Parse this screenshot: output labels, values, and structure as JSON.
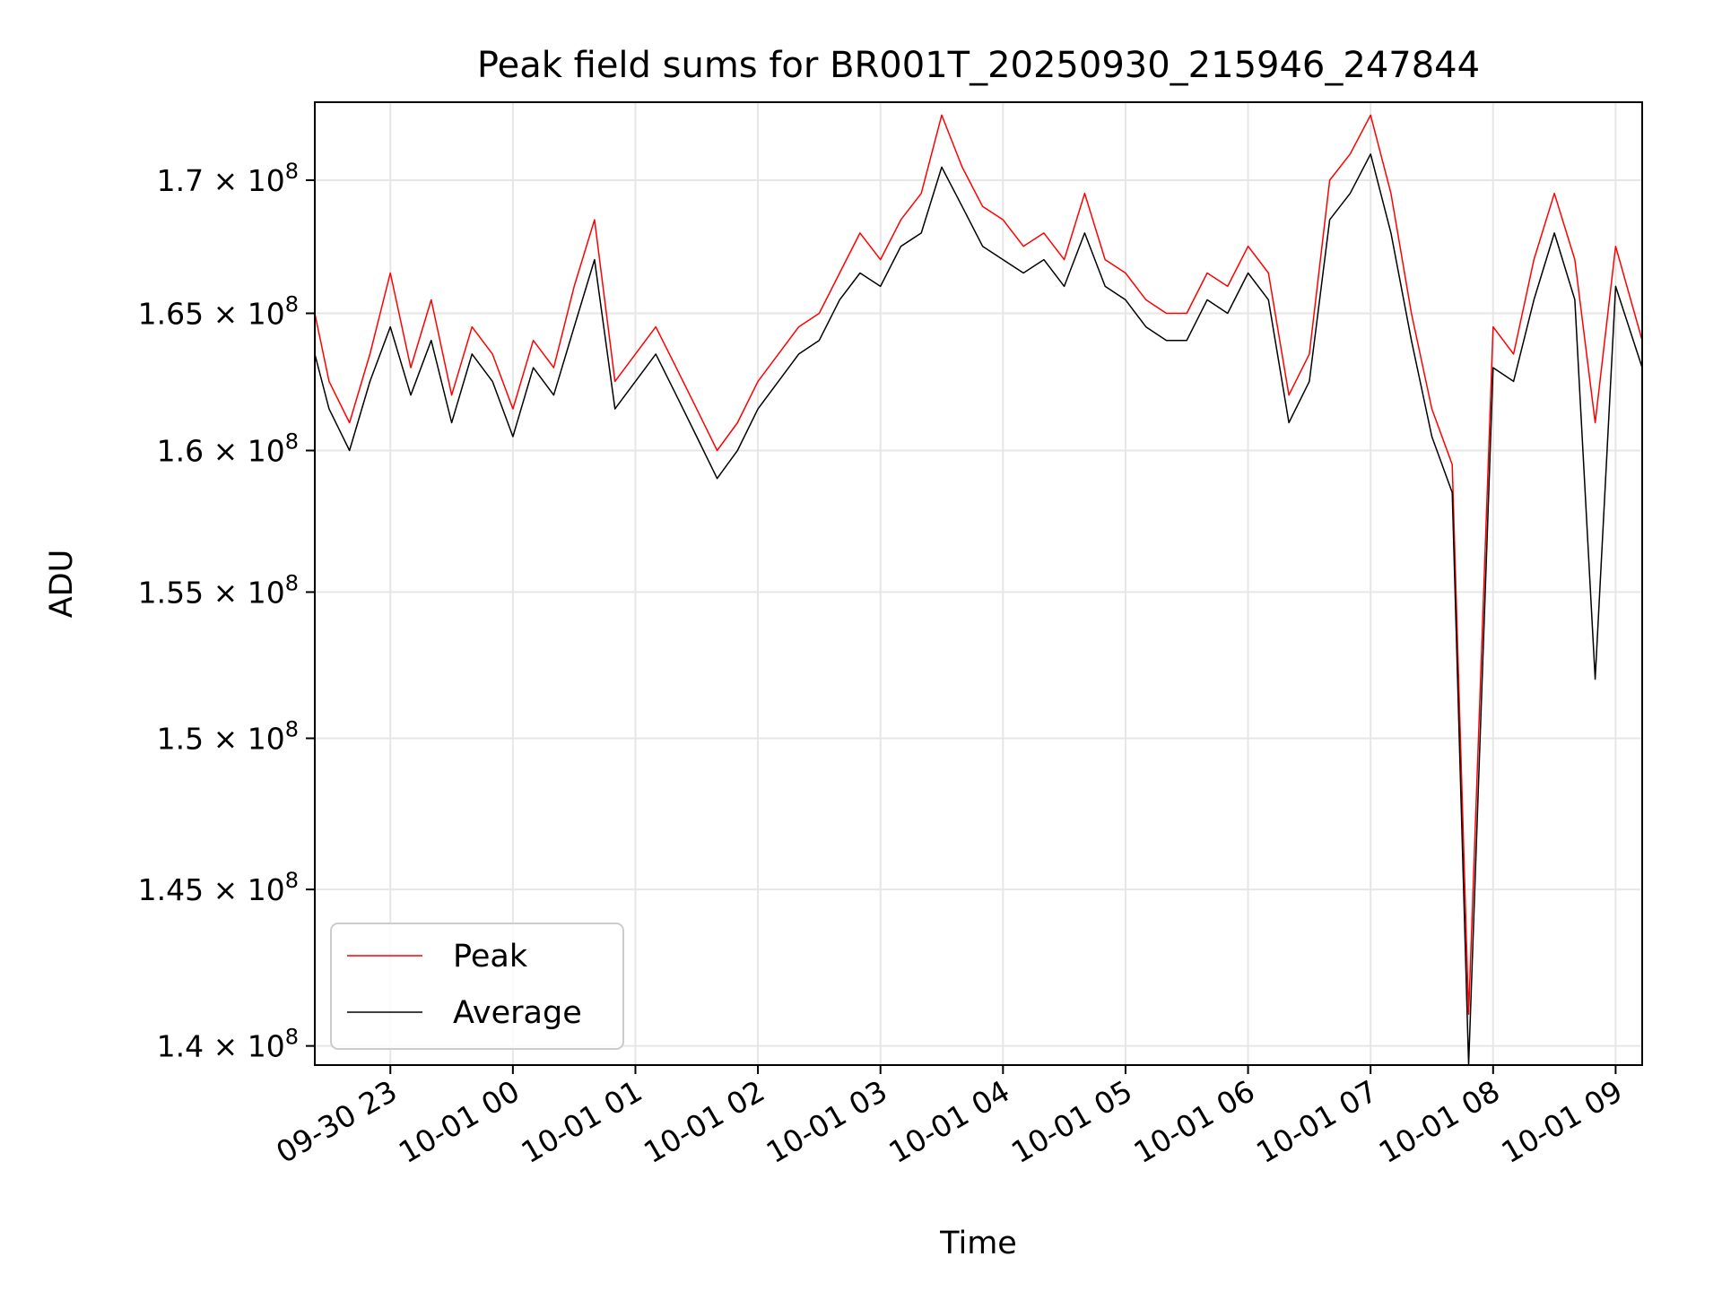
{
  "chart_data": {
    "type": "line",
    "title": "Peak field sums for BR001T_20250930_215946_247844",
    "xlabel": "Time",
    "ylabel": "ADU",
    "x_axis": {
      "type": "datetime",
      "range": [
        "2025-09-30T22:23:00",
        "2025-10-01T09:13:00"
      ],
      "ticks": [
        {
          "value": "2025-09-30T23:00:00",
          "label": "09-30 23"
        },
        {
          "value": "2025-10-01T00:00:00",
          "label": "10-01 00"
        },
        {
          "value": "2025-10-01T01:00:00",
          "label": "10-01 01"
        },
        {
          "value": "2025-10-01T02:00:00",
          "label": "10-01 02"
        },
        {
          "value": "2025-10-01T03:00:00",
          "label": "10-01 03"
        },
        {
          "value": "2025-10-01T04:00:00",
          "label": "10-01 04"
        },
        {
          "value": "2025-10-01T05:00:00",
          "label": "10-01 05"
        },
        {
          "value": "2025-10-01T06:00:00",
          "label": "10-01 06"
        },
        {
          "value": "2025-10-01T07:00:00",
          "label": "10-01 07"
        },
        {
          "value": "2025-10-01T08:00:00",
          "label": "10-01 08"
        },
        {
          "value": "2025-10-01T09:00:00",
          "label": "10-01 09"
        }
      ]
    },
    "y_axis": {
      "scale": "log",
      "range": [
        139400000,
        173000000
      ],
      "ticks": [
        {
          "value": 140000000,
          "mantissa": "1.4",
          "exp": "8"
        },
        {
          "value": 145000000,
          "mantissa": "1.45",
          "exp": "8"
        },
        {
          "value": 150000000,
          "mantissa": "1.5",
          "exp": "8"
        },
        {
          "value": 155000000,
          "mantissa": "1.55",
          "exp": "8"
        },
        {
          "value": 160000000,
          "mantissa": "1.6",
          "exp": "8"
        },
        {
          "value": 165000000,
          "mantissa": "1.65",
          "exp": "8"
        },
        {
          "value": 170000000,
          "mantissa": "1.7",
          "exp": "8"
        }
      ]
    },
    "grid": true,
    "legend": {
      "position": "lower-left",
      "entries": [
        {
          "name": "Peak",
          "color": "#ff0000"
        },
        {
          "name": "Average",
          "color": "#000000"
        }
      ]
    },
    "series": [
      {
        "name": "Peak",
        "color": "#ff0000",
        "x": [
          "2025-09-30T22:23:00",
          "2025-09-30T22:30:00",
          "2025-09-30T22:40:00",
          "2025-09-30T22:50:00",
          "2025-09-30T23:00:00",
          "2025-09-30T23:10:00",
          "2025-09-30T23:20:00",
          "2025-09-30T23:30:00",
          "2025-09-30T23:40:00",
          "2025-09-30T23:50:00",
          "2025-10-01T00:00:00",
          "2025-10-01T00:10:00",
          "2025-10-01T00:20:00",
          "2025-10-01T00:30:00",
          "2025-10-01T00:40:00",
          "2025-10-01T00:50:00",
          "2025-10-01T01:00:00",
          "2025-10-01T01:10:00",
          "2025-10-01T01:20:00",
          "2025-10-01T01:30:00",
          "2025-10-01T01:40:00",
          "2025-10-01T01:50:00",
          "2025-10-01T02:00:00",
          "2025-10-01T02:10:00",
          "2025-10-01T02:20:00",
          "2025-10-01T02:30:00",
          "2025-10-01T02:40:00",
          "2025-10-01T02:50:00",
          "2025-10-01T03:00:00",
          "2025-10-01T03:10:00",
          "2025-10-01T03:20:00",
          "2025-10-01T03:30:00",
          "2025-10-01T03:40:00",
          "2025-10-01T03:50:00",
          "2025-10-01T04:00:00",
          "2025-10-01T04:10:00",
          "2025-10-01T04:20:00",
          "2025-10-01T04:30:00",
          "2025-10-01T04:40:00",
          "2025-10-01T04:50:00",
          "2025-10-01T05:00:00",
          "2025-10-01T05:10:00",
          "2025-10-01T05:20:00",
          "2025-10-01T05:30:00",
          "2025-10-01T05:40:00",
          "2025-10-01T05:50:00",
          "2025-10-01T06:00:00",
          "2025-10-01T06:10:00",
          "2025-10-01T06:20:00",
          "2025-10-01T06:30:00",
          "2025-10-01T06:40:00",
          "2025-10-01T06:50:00",
          "2025-10-01T07:00:00",
          "2025-10-01T07:10:00",
          "2025-10-01T07:20:00",
          "2025-10-01T07:30:00",
          "2025-10-01T07:40:00",
          "2025-10-01T07:48:00",
          "2025-10-01T08:00:00",
          "2025-10-01T08:10:00",
          "2025-10-01T08:20:00",
          "2025-10-01T08:30:00",
          "2025-10-01T08:40:00",
          "2025-10-01T08:50:00",
          "2025-10-01T09:00:00",
          "2025-10-01T09:13:00"
        ],
        "values": [
          165000000,
          162500000,
          161000000,
          163500000,
          166500000,
          163000000,
          165500000,
          162000000,
          164500000,
          163500000,
          161500000,
          164000000,
          163000000,
          166000000,
          168500000,
          162500000,
          163500000,
          164500000,
          163000000,
          161500000,
          160000000,
          161000000,
          162500000,
          163500000,
          164500000,
          165000000,
          166500000,
          168000000,
          167000000,
          168500000,
          169500000,
          172500000,
          170500000,
          169000000,
          168500000,
          167500000,
          168000000,
          167000000,
          169500000,
          167000000,
          166500000,
          165500000,
          165000000,
          165000000,
          166500000,
          166000000,
          167500000,
          166500000,
          162000000,
          163500000,
          170000000,
          171000000,
          172500000,
          169500000,
          165000000,
          161500000,
          159500000,
          141000000,
          164500000,
          163500000,
          167000000,
          169500000,
          167000000,
          161000000,
          167500000,
          164000000
        ]
      },
      {
        "name": "Average",
        "color": "#000000",
        "x": [
          "2025-09-30T22:23:00",
          "2025-09-30T22:30:00",
          "2025-09-30T22:40:00",
          "2025-09-30T22:50:00",
          "2025-09-30T23:00:00",
          "2025-09-30T23:10:00",
          "2025-09-30T23:20:00",
          "2025-09-30T23:30:00",
          "2025-09-30T23:40:00",
          "2025-09-30T23:50:00",
          "2025-10-01T00:00:00",
          "2025-10-01T00:10:00",
          "2025-10-01T00:20:00",
          "2025-10-01T00:30:00",
          "2025-10-01T00:40:00",
          "2025-10-01T00:50:00",
          "2025-10-01T01:00:00",
          "2025-10-01T01:10:00",
          "2025-10-01T01:20:00",
          "2025-10-01T01:30:00",
          "2025-10-01T01:40:00",
          "2025-10-01T01:50:00",
          "2025-10-01T02:00:00",
          "2025-10-01T02:10:00",
          "2025-10-01T02:20:00",
          "2025-10-01T02:30:00",
          "2025-10-01T02:40:00",
          "2025-10-01T02:50:00",
          "2025-10-01T03:00:00",
          "2025-10-01T03:10:00",
          "2025-10-01T03:20:00",
          "2025-10-01T03:30:00",
          "2025-10-01T03:40:00",
          "2025-10-01T03:50:00",
          "2025-10-01T04:00:00",
          "2025-10-01T04:10:00",
          "2025-10-01T04:20:00",
          "2025-10-01T04:30:00",
          "2025-10-01T04:40:00",
          "2025-10-01T04:50:00",
          "2025-10-01T05:00:00",
          "2025-10-01T05:10:00",
          "2025-10-01T05:20:00",
          "2025-10-01T05:30:00",
          "2025-10-01T05:40:00",
          "2025-10-01T05:50:00",
          "2025-10-01T06:00:00",
          "2025-10-01T06:10:00",
          "2025-10-01T06:20:00",
          "2025-10-01T06:30:00",
          "2025-10-01T06:40:00",
          "2025-10-01T06:50:00",
          "2025-10-01T07:00:00",
          "2025-10-01T07:10:00",
          "2025-10-01T07:20:00",
          "2025-10-01T07:30:00",
          "2025-10-01T07:40:00",
          "2025-10-01T07:48:00",
          "2025-10-01T08:00:00",
          "2025-10-01T08:10:00",
          "2025-10-01T08:20:00",
          "2025-10-01T08:30:00",
          "2025-10-01T08:40:00",
          "2025-10-01T08:50:00",
          "2025-10-01T09:00:00",
          "2025-10-01T09:13:00"
        ],
        "values": [
          163500000,
          161500000,
          160000000,
          162500000,
          164500000,
          162000000,
          164000000,
          161000000,
          163500000,
          162500000,
          160500000,
          163000000,
          162000000,
          164500000,
          167000000,
          161500000,
          162500000,
          163500000,
          162000000,
          160500000,
          159000000,
          160000000,
          161500000,
          162500000,
          163500000,
          164000000,
          165500000,
          166500000,
          166000000,
          167500000,
          168000000,
          170500000,
          169000000,
          167500000,
          167000000,
          166500000,
          167000000,
          166000000,
          168000000,
          166000000,
          165500000,
          164500000,
          164000000,
          164000000,
          165500000,
          165000000,
          166500000,
          165500000,
          161000000,
          162500000,
          168500000,
          169500000,
          171000000,
          168000000,
          164000000,
          160500000,
          158500000,
          139400000,
          163000000,
          162500000,
          165500000,
          168000000,
          165500000,
          152000000,
          166000000,
          163000000
        ]
      }
    ]
  }
}
